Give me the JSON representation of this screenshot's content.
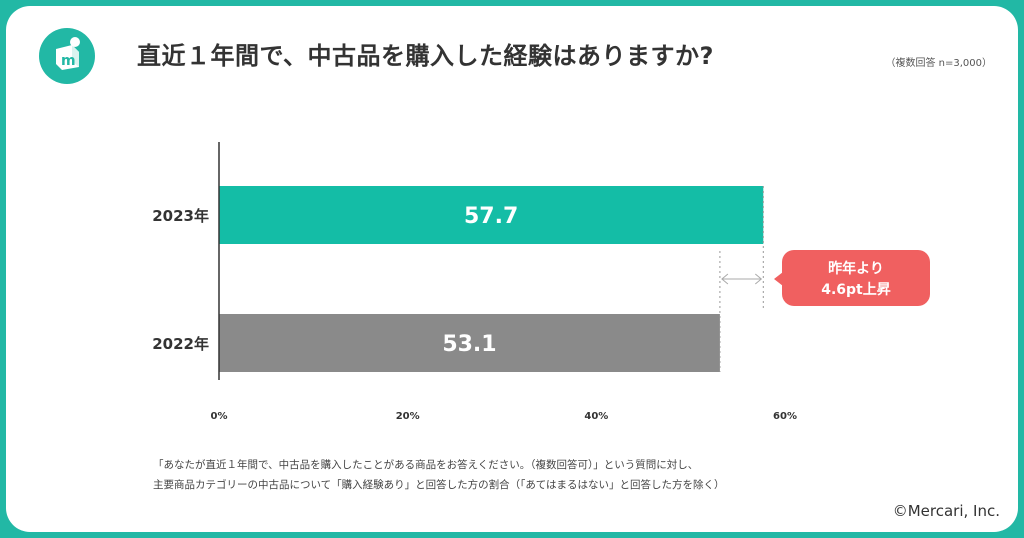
{
  "header": {
    "title": "直近１年間で、中古品を購入した経験はありますか?",
    "note": "（複数回答 n=3,000）"
  },
  "colors": {
    "frame": "#22b8a5",
    "bar_2023": "#14bda6",
    "bar_2022": "#8a8a8a",
    "callout": "#f06060"
  },
  "chart_data": {
    "type": "bar",
    "orientation": "horizontal",
    "categories": [
      "2023年",
      "2022年"
    ],
    "values": [
      57.7,
      53.1
    ],
    "value_labels": [
      "57.7",
      "53.1"
    ],
    "xlim": [
      0,
      60
    ],
    "xticks": [
      "0%",
      "20%",
      "40%",
      "60%"
    ],
    "grid": false,
    "annotation": {
      "line1": "昨年より",
      "line2": "4.6pt上昇"
    }
  },
  "footnote": {
    "line1": "「あなたが直近１年間で、中古品を購入したことがある商品をお答えください。（複数回答可）」という質問に対し、",
    "line2": "主要商品カテゴリーの中古品について「購入経験あり」と回答した方の割合（「あてはまるはない」と回答した方を除く）"
  },
  "copyright": "©Mercari, Inc."
}
